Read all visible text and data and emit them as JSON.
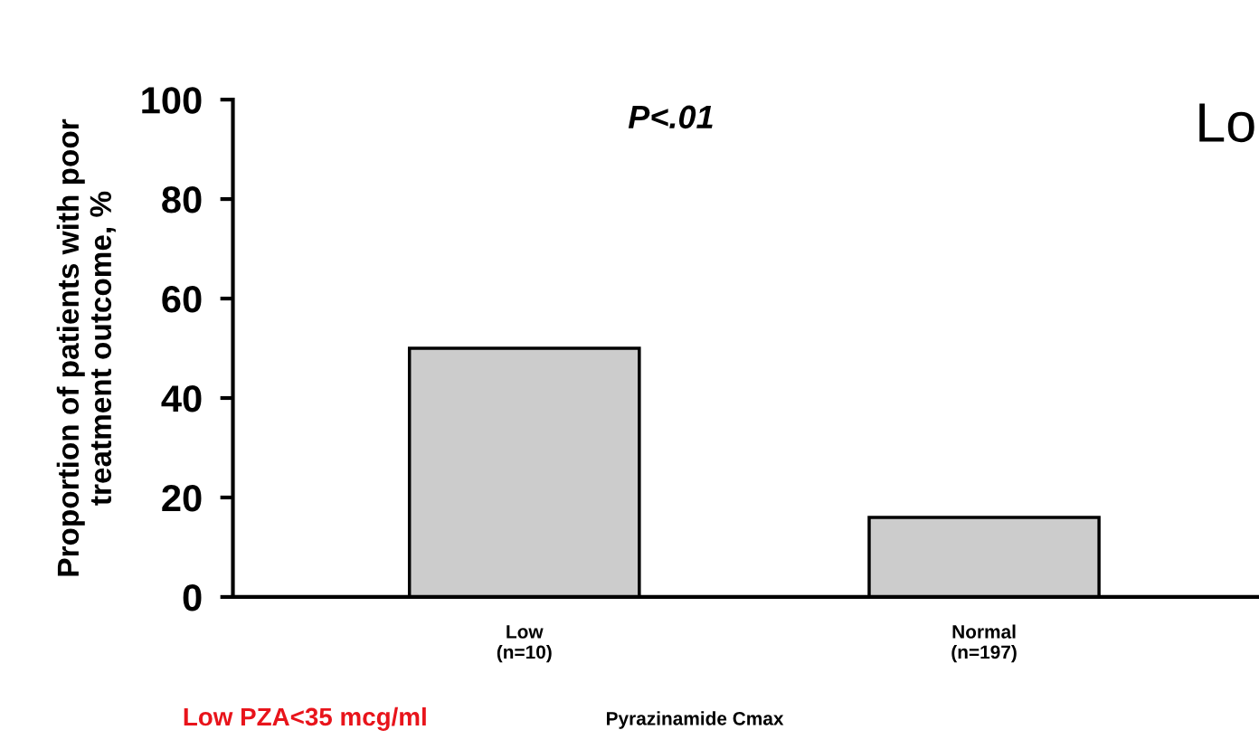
{
  "chart_data": {
    "type": "bar",
    "categories": [
      "Low\n(n=10)",
      "Normal\n(n=197)"
    ],
    "values": [
      50,
      16
    ],
    "color": "#cccccc",
    "xlabel": "Pyrazinamide Cmax",
    "ylabel": "Proportion of patients with poor\ntreatment outcome, %",
    "ylim": [
      0,
      100
    ],
    "yticks": [
      0,
      20,
      40,
      60,
      80,
      100
    ],
    "grid": false,
    "annotations": [
      "P<.01",
      "Lo",
      "Low PZA<35 mcg/ml"
    ]
  }
}
